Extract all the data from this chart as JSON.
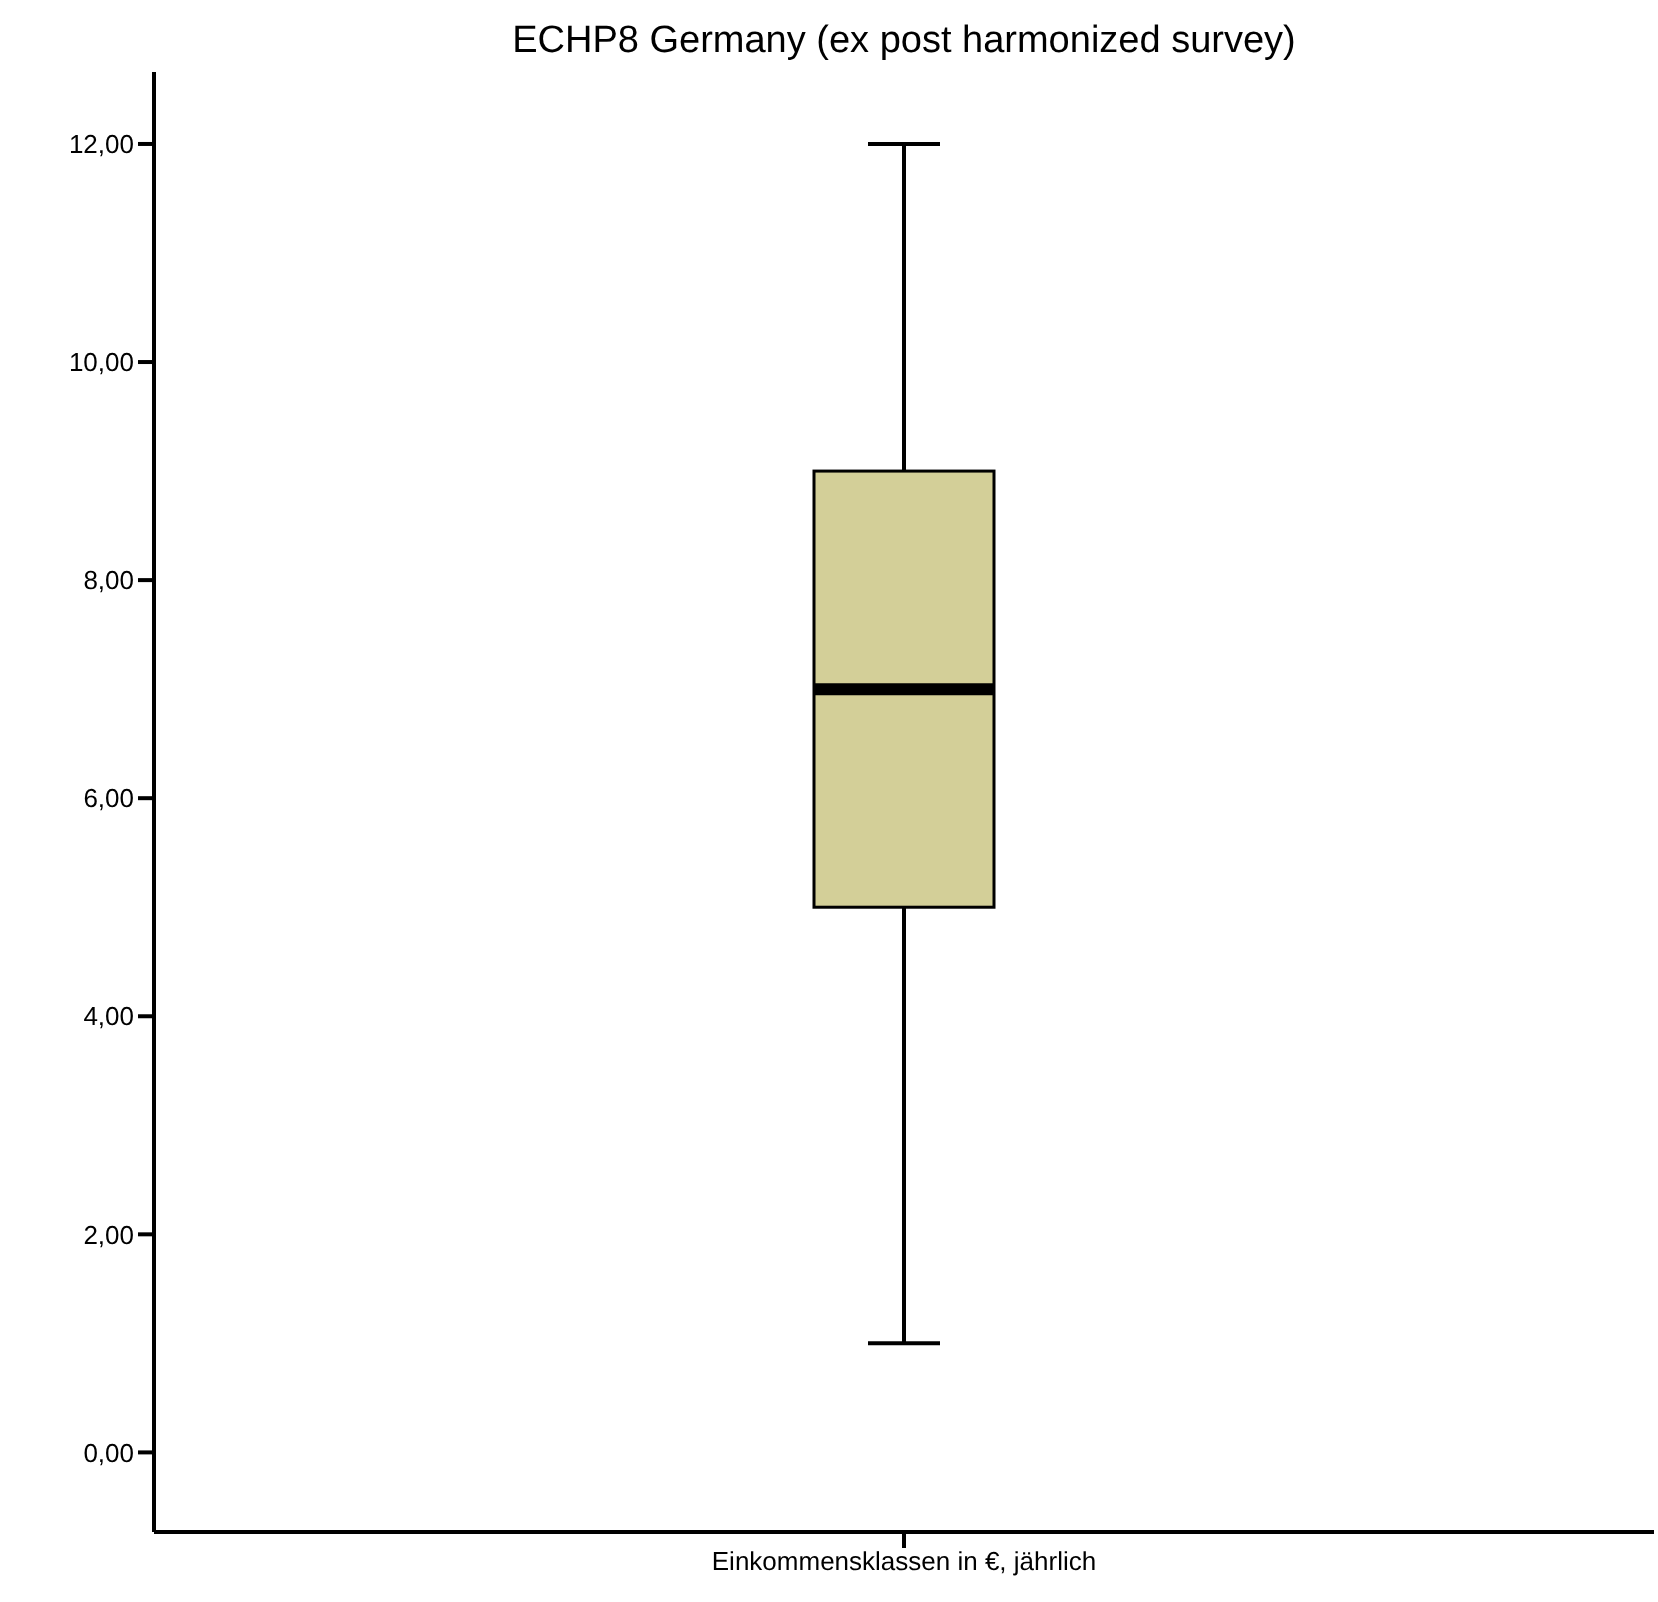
{
  "chart_data": {
    "type": "box",
    "title": "ECHP8 Germany (ex post harmonized survey)",
    "categories": [
      "Einkommensklassen in €, jährlich"
    ],
    "boxes": [
      {
        "low": 1,
        "q1": 5,
        "median": 7,
        "q3": 9,
        "high": 12
      }
    ],
    "color": "#d3cf98",
    "ylim": [
      -0.73,
      12.66
    ],
    "yticks": [
      {
        "value": 0,
        "label": "0,00"
      },
      {
        "value": 2,
        "label": "2,00"
      },
      {
        "value": 4,
        "label": "4,00"
      },
      {
        "value": 6,
        "label": "6,00"
      },
      {
        "value": 8,
        "label": "8,00"
      },
      {
        "value": 10,
        "label": "10,00"
      },
      {
        "value": 12,
        "label": "12,00"
      }
    ],
    "grid": false,
    "legend": false
  }
}
